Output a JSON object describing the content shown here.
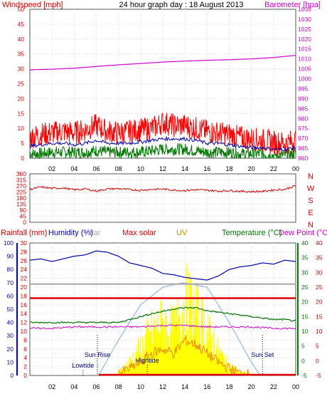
{
  "header": {
    "title": "24 hour graph day : 18 August 2013",
    "left_label": "Windspeed [mph]",
    "right_label": "Barometer [hpa]"
  },
  "colors": {
    "wind": "#ff0000",
    "wind_avg": "#0000aa",
    "wind_low": "#007700",
    "barometer": "#cc00cc",
    "direction": "#cc0000",
    "humidity": "#0000aa",
    "solar_theory": "#aaaaaa",
    "max_solar": "#dd0000",
    "temperature": "#007700",
    "dew_point": "#cc00cc",
    "uv_solar_fill": "#ffff00",
    "uv_line": "#ee8800",
    "rain_axis": "#0000cc",
    "sun_curve": "#99bbee"
  },
  "panel3_labels": {
    "rainfall": "Rainfall (mm)",
    "humidity": "Humidity (%)",
    "solar": "olar",
    "max_solar": "Max solar",
    "uv": "UV",
    "temperature": "Temperature (°C)",
    "dew_point": "Dew Point (°C)"
  },
  "annotations": {
    "sun_rise": "Sun Rise",
    "sun_set": "Sun Set",
    "lowtide": "Lowtide",
    "hightide": "Hightide"
  },
  "compass": [
    "N",
    "W",
    "S",
    "E",
    "N"
  ],
  "x_ticks": [
    "02",
    "04",
    "06",
    "08",
    "10",
    "12",
    "14",
    "16",
    "18",
    "20",
    "22",
    "00"
  ],
  "chart_data": [
    {
      "type": "line",
      "title": "24 hour graph day : 18 August 2013",
      "x_hours": [
        0,
        24
      ],
      "y_left": {
        "label": "Windspeed [mph]",
        "ticks": [
          0,
          5,
          10,
          15,
          20,
          25,
          30,
          35,
          40,
          45,
          50
        ],
        "ylim": [
          0,
          50
        ]
      },
      "y_right": {
        "label": "Barometer [hpa]",
        "ticks": [
          960,
          965,
          970,
          975,
          980,
          985,
          990,
          995,
          1000,
          1005,
          1010,
          1015,
          1020,
          1025,
          1030,
          1035
        ],
        "ylim": [
          960,
          1035
        ]
      },
      "series": [
        {
          "name": "Barometer [hpa]",
          "axis": "right",
          "hours": [
            0,
            2,
            4,
            6,
            8,
            10,
            12,
            14,
            16,
            18,
            20,
            22,
            24
          ],
          "values": [
            1004.5,
            1004.8,
            1005.3,
            1006.2,
            1007.0,
            1007.7,
            1008.4,
            1008.9,
            1009.3,
            1009.6,
            1010.0,
            1010.7,
            1011.8
          ]
        },
        {
          "name": "Windspeed [mph]",
          "axis": "left",
          "hours": [
            0,
            1,
            2,
            3,
            4,
            5,
            6,
            7,
            8,
            9,
            10,
            11,
            12,
            13,
            14,
            15,
            16,
            17,
            18,
            19,
            20,
            21,
            22,
            23,
            24
          ],
          "values": [
            7,
            8,
            8.5,
            9,
            8.5,
            9.5,
            11,
            9,
            8.5,
            9,
            9.5,
            10,
            12,
            11,
            11,
            10,
            9,
            8.5,
            8,
            7,
            6.5,
            6,
            5.5,
            5,
            6
          ]
        },
        {
          "hours": [
            0,
            1,
            2,
            3,
            4,
            5,
            6,
            7,
            8,
            9,
            10,
            11,
            12,
            13,
            14,
            15,
            16,
            17,
            18,
            19,
            20,
            21,
            22,
            23,
            24
          ],
          "axis": "left",
          "values": [
            4,
            4.5,
            5,
            5,
            4.5,
            5,
            6,
            5,
            5,
            5,
            5.5,
            6,
            6.5,
            6.5,
            6.5,
            6,
            5,
            5,
            4.5,
            4,
            3.5,
            3.5,
            3,
            3,
            3.5
          ]
        },
        {
          "hours": [
            0,
            1,
            2,
            3,
            4,
            5,
            6,
            7,
            8,
            9,
            10,
            11,
            12,
            13,
            14,
            15,
            16,
            17,
            18,
            19,
            20,
            21,
            22,
            23,
            24
          ],
          "axis": "left",
          "values": [
            1.5,
            1.5,
            2,
            2,
            2,
            2,
            2.5,
            2,
            2,
            2,
            2,
            2.5,
            3,
            3,
            3,
            2.5,
            2,
            2,
            2,
            1.5,
            1.5,
            1.5,
            1,
            1,
            1.5
          ]
        }
      ]
    },
    {
      "type": "line",
      "x_hours": [
        0,
        24
      ],
      "y_left": {
        "ticks": [
          0,
          45,
          90,
          135,
          180,
          225,
          270,
          315,
          360
        ],
        "ylim": [
          0,
          360
        ]
      },
      "series": [
        {
          "hours": [
            0,
            1,
            2,
            3,
            4,
            5,
            6,
            7,
            8,
            9,
            10,
            11,
            12,
            13,
            14,
            15,
            16,
            17,
            18,
            19,
            20,
            21,
            22,
            23,
            24
          ],
          "values": [
            245,
            262,
            252,
            255,
            242,
            248,
            232,
            248,
            250,
            243,
            238,
            245,
            247,
            240,
            236,
            242,
            238,
            232,
            236,
            230,
            228,
            230,
            240,
            245,
            272
          ]
        }
      ]
    },
    {
      "type": "line",
      "x_hours": [
        0,
        24
      ],
      "y_rain": {
        "label": "Rainfall (mm)",
        "ticks": [
          0,
          2,
          4,
          6,
          8,
          10,
          12,
          14,
          16,
          18,
          20,
          22,
          24,
          26,
          28,
          30
        ],
        "ylim": [
          0,
          30
        ]
      },
      "y_humidity": {
        "label": "Humidity (%)",
        "ticks": [
          0,
          5,
          10,
          15,
          20,
          25,
          30,
          35,
          40,
          45,
          50,
          55,
          60,
          65,
          70,
          75,
          80,
          85,
          90,
          95,
          100
        ],
        "ylim": [
          0,
          100
        ]
      },
      "y_temp": {
        "label": "Temperature (°C)",
        "ticks": [
          -5,
          0,
          5,
          10,
          15,
          20,
          25,
          30,
          35,
          40
        ],
        "ylim": [
          -5,
          40
        ]
      },
      "y_dew": {
        "label": "Dew Point (°C)",
        "ticks": [
          -5,
          0,
          5,
          10,
          15,
          20,
          25,
          30,
          35,
          40
        ],
        "ylim": [
          -5,
          40
        ]
      },
      "series": [
        {
          "name": "Humidity (%)",
          "axis": "humidity",
          "hours": [
            0,
            1,
            2,
            3,
            4,
            5,
            6,
            7,
            8,
            9,
            10,
            11,
            12,
            13,
            14,
            15,
            16,
            17,
            18,
            19,
            20,
            21,
            22,
            23,
            24
          ],
          "values": [
            87,
            88,
            86,
            88,
            90,
            91,
            94,
            93,
            90,
            85,
            83,
            81,
            77,
            76,
            74,
            73,
            72,
            75,
            80,
            82,
            83,
            85,
            84,
            87,
            86
          ]
        },
        {
          "axis": "humidity",
          "hours": [
            0,
            24
          ],
          "values": [
            69,
            69
          ]
        },
        {
          "name": "Max solar",
          "axis": "rain",
          "hours": [
            0,
            24
          ],
          "values": [
            17.5,
            17.5
          ]
        },
        {
          "name": "Temperature (°C)",
          "axis": "temp",
          "hours": [
            0,
            1,
            2,
            3,
            4,
            5,
            6,
            7,
            8,
            9,
            10,
            11,
            12,
            13,
            14,
            15,
            16,
            17,
            18,
            19,
            20,
            21,
            22,
            23,
            24
          ],
          "values": [
            13,
            13,
            13,
            13,
            13,
            13,
            13,
            13,
            13,
            14,
            15,
            16,
            16.8,
            17.6,
            18,
            18,
            17,
            16.5,
            16,
            15.5,
            15,
            14.5,
            14,
            14,
            13.5
          ]
        },
        {
          "name": "Dew Point (°C)",
          "axis": "dew",
          "hours": [
            0,
            2,
            4,
            6,
            8,
            10,
            12,
            14,
            16,
            18,
            20,
            22,
            24
          ],
          "values": [
            11,
            11,
            11.5,
            11.5,
            11.5,
            11.5,
            12,
            12,
            11.5,
            11.5,
            11.5,
            11,
            11
          ]
        },
        {
          "axis": "rain",
          "hours": [
            8,
            9,
            10,
            11,
            12,
            13,
            14,
            15,
            16,
            17,
            18,
            19,
            20
          ],
          "values": [
            1,
            4,
            8,
            13,
            15,
            13,
            22,
            18,
            13,
            7,
            3,
            1,
            0.5
          ]
        },
        {
          "name": "UV",
          "axis": "rain",
          "hours": [
            8,
            9,
            10,
            11,
            12,
            13,
            14,
            15,
            16,
            17,
            18,
            19,
            20
          ],
          "values": [
            0.5,
            1.5,
            3,
            5,
            6,
            5,
            8,
            7,
            5,
            3,
            1.5,
            0.5,
            0.2
          ]
        },
        {
          "axis": "rain",
          "hours": [
            6.2,
            8,
            10,
            12,
            13.8,
            16,
            18,
            20,
            20.8
          ],
          "values": [
            0,
            8,
            16,
            20,
            21,
            20,
            12,
            3,
            0
          ]
        }
      ],
      "annotations": [
        {
          "text": "Sun Rise",
          "hour": 6.1
        },
        {
          "text": "Sun Set",
          "hour": 21
        },
        {
          "text": "Lowtide",
          "hour": 4.8
        },
        {
          "text": "Hightide",
          "hour": 10.6
        }
      ]
    }
  ]
}
